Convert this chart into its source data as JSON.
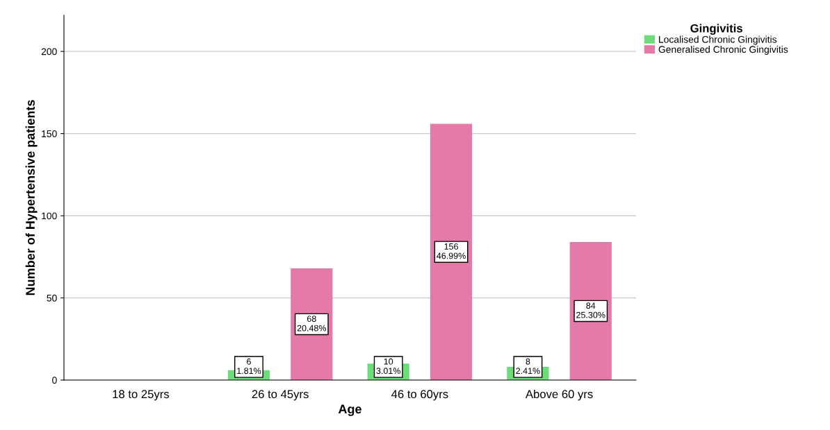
{
  "chart_data": {
    "type": "bar",
    "xlabel": "Age",
    "ylabel": "Number of Hypertensive patients",
    "legend_title": "Gingivitis",
    "categories": [
      "18 to 25yrs",
      "26 to 45yrs",
      "46 to 60yrs",
      "Above 60 yrs"
    ],
    "series": [
      {
        "name": "Localised Chronic Gingivitis",
        "color": "#6fdc7a",
        "values": [
          null,
          6,
          10,
          8
        ],
        "value_labels": [
          null,
          "6\n1.81%",
          "10\n3.01%",
          "8\n2.41%"
        ]
      },
      {
        "name": "Generalised Chronic Gingivitis",
        "color": "#e57aa8",
        "values": [
          null,
          68,
          156,
          84
        ],
        "value_labels": [
          null,
          "68\n20.48%",
          "156\n46.99%",
          "84\n25.30%"
        ]
      }
    ],
    "ylim": [
      0,
      222
    ],
    "yticks": [
      0,
      50,
      100,
      150,
      200
    ],
    "grid": "y",
    "legend": "top right"
  }
}
